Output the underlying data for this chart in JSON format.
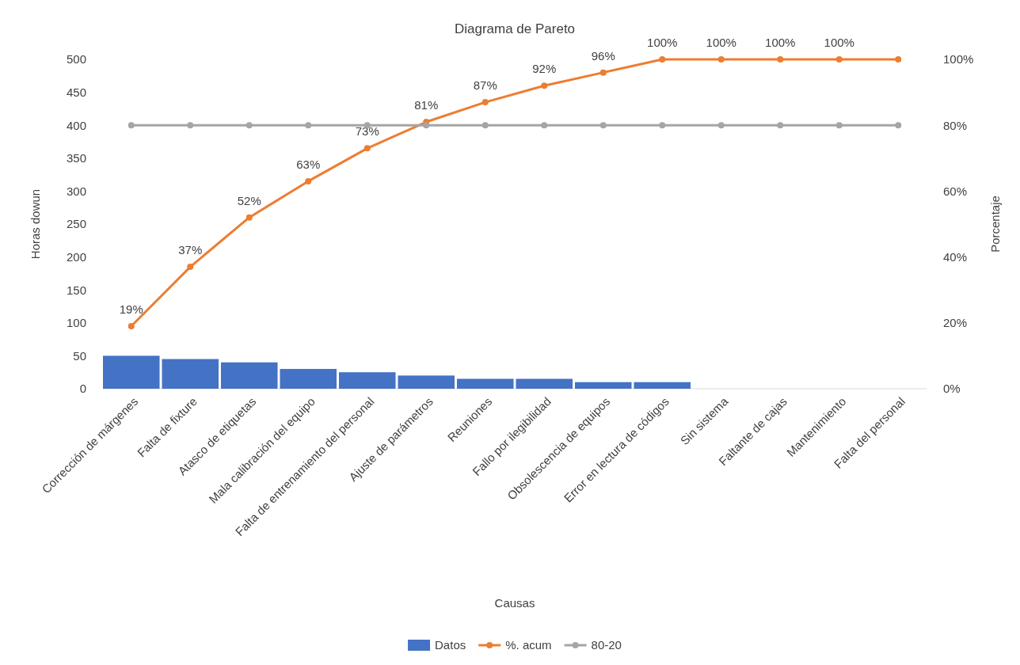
{
  "chart_data": {
    "type": "bar",
    "title": "Diagrama de Pareto",
    "xlabel": "Causas",
    "ylabel": "Horas dowun",
    "y2label": "Porcentaje",
    "categories": [
      "Corrección de márgenes",
      "Falta de fixture",
      "Atasco de etiquetas",
      "Mala calibración del equipo",
      "Falta de entrenamiento del personal",
      "Ajuste de parámetros",
      "Reuniones",
      "Fallo por ilegibilidad",
      "Obsolescencia de equipos",
      "Error en lectura de códigos",
      "Sin sistema",
      "Faltante de cajas",
      "Mantenimiento",
      "Falta del personal"
    ],
    "series": [
      {
        "name": "Datos",
        "color": "#4472c4",
        "values": [
          50,
          45,
          40,
          30,
          25,
          20,
          15,
          15,
          10,
          10,
          0,
          0,
          0,
          0
        ]
      },
      {
        "name": "%. acum",
        "type": "line",
        "axis": "y2",
        "color": "#ed7d31",
        "marker": "circle",
        "values": [
          19,
          37,
          52,
          63,
          73,
          81,
          87,
          92,
          96,
          100,
          100,
          100,
          100,
          100
        ],
        "value_labels": [
          "19%",
          "37%",
          "52%",
          "63%",
          "73%",
          "81%",
          "87%",
          "92%",
          "96%",
          "100%",
          "100%",
          "100%",
          "100%",
          null
        ]
      },
      {
        "name": "80-20",
        "type": "line",
        "axis": "y2",
        "color": "#a5a5a5",
        "marker": "circle",
        "values": [
          80,
          80,
          80,
          80,
          80,
          80,
          80,
          80,
          80,
          80,
          80,
          80,
          80,
          80
        ]
      }
    ],
    "ylim": [
      0,
      500
    ],
    "yticks": [
      0,
      50,
      100,
      150,
      200,
      250,
      300,
      350,
      400,
      450,
      500
    ],
    "y2lim": [
      0,
      100
    ],
    "y2ticks": [
      {
        "value": 0,
        "label": "0%"
      },
      {
        "value": 20,
        "label": "20%"
      },
      {
        "value": 40,
        "label": "40%"
      },
      {
        "value": 60,
        "label": "60%"
      },
      {
        "value": 80,
        "label": "80%"
      },
      {
        "value": 100,
        "label": "100%"
      }
    ],
    "grid": false,
    "legend": "bottom"
  }
}
